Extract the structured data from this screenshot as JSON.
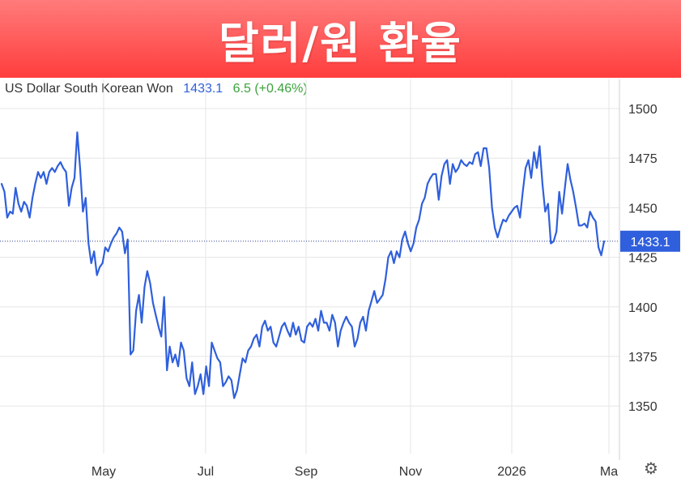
{
  "banner": {
    "title": "달러/원 환율"
  },
  "legend": {
    "name": "US Dollar South Korean Won",
    "value": "1433.1",
    "change": "6.5 (+0.46%)"
  },
  "settings": {
    "icon": "gear-icon",
    "glyph": "⚙"
  },
  "colors": {
    "banner": "#ff4a4a",
    "line": "#2f5fdc",
    "change": "#3aa33a",
    "grid": "#e6e6e6"
  },
  "chart_data": {
    "type": "line",
    "title": "US Dollar South Korean Won",
    "current_label": "1433.1",
    "ylim": [
      1325,
      1505
    ],
    "yticks": [
      1350,
      1375,
      1400,
      1425,
      1450,
      1475,
      1500
    ],
    "x_tick_labels": [
      "May",
      "Jul",
      "Sep",
      "Nov",
      "2026",
      "Ma"
    ],
    "grid": true,
    "series": [
      {
        "values": [
          1462,
          1458,
          1445,
          1448,
          1447,
          1460,
          1452,
          1448,
          1453,
          1451,
          1445,
          1455,
          1462,
          1468,
          1465,
          1468,
          1462,
          1468,
          1470,
          1468,
          1471,
          1473,
          1470,
          1468,
          1451,
          1460,
          1465,
          1488,
          1470,
          1448,
          1455,
          1432,
          1422,
          1428,
          1416,
          1420,
          1422,
          1430,
          1428,
          1432,
          1435,
          1437,
          1440,
          1438,
          1427,
          1434,
          1376,
          1378,
          1398,
          1406,
          1392,
          1410,
          1418,
          1412,
          1402,
          1396,
          1390,
          1385,
          1405,
          1368,
          1380,
          1372,
          1376,
          1370,
          1382,
          1378,
          1364,
          1360,
          1372,
          1356,
          1360,
          1366,
          1356,
          1370,
          1360,
          1382,
          1378,
          1374,
          1372,
          1360,
          1362,
          1365,
          1363,
          1354,
          1358,
          1366,
          1374,
          1372,
          1378,
          1380,
          1384,
          1386,
          1380,
          1390,
          1393,
          1388,
          1390,
          1382,
          1380,
          1385,
          1390,
          1392,
          1388,
          1385,
          1392,
          1386,
          1390,
          1383,
          1382,
          1390,
          1392,
          1390,
          1394,
          1388,
          1398,
          1392,
          1392,
          1388,
          1396,
          1392,
          1380,
          1388,
          1392,
          1395,
          1392,
          1390,
          1380,
          1384,
          1392,
          1395,
          1388,
          1398,
          1403,
          1408,
          1402,
          1404,
          1406,
          1414,
          1425,
          1428,
          1422,
          1428,
          1425,
          1434,
          1438,
          1432,
          1428,
          1432,
          1440,
          1444,
          1452,
          1455,
          1462,
          1465,
          1467,
          1467,
          1454,
          1466,
          1472,
          1474,
          1462,
          1472,
          1468,
          1470,
          1474,
          1472,
          1471,
          1473,
          1472,
          1477,
          1478,
          1471,
          1480,
          1480,
          1470,
          1450,
          1440,
          1435,
          1440,
          1444,
          1443,
          1446,
          1448,
          1450,
          1451,
          1445,
          1458,
          1470,
          1474,
          1465,
          1478,
          1470,
          1481,
          1462,
          1448,
          1452,
          1432,
          1433,
          1438,
          1458,
          1447,
          1460,
          1472,
          1464,
          1458,
          1450,
          1441,
          1441,
          1442,
          1440,
          1448,
          1445,
          1443,
          1430,
          1426,
          1433
        ]
      }
    ]
  }
}
